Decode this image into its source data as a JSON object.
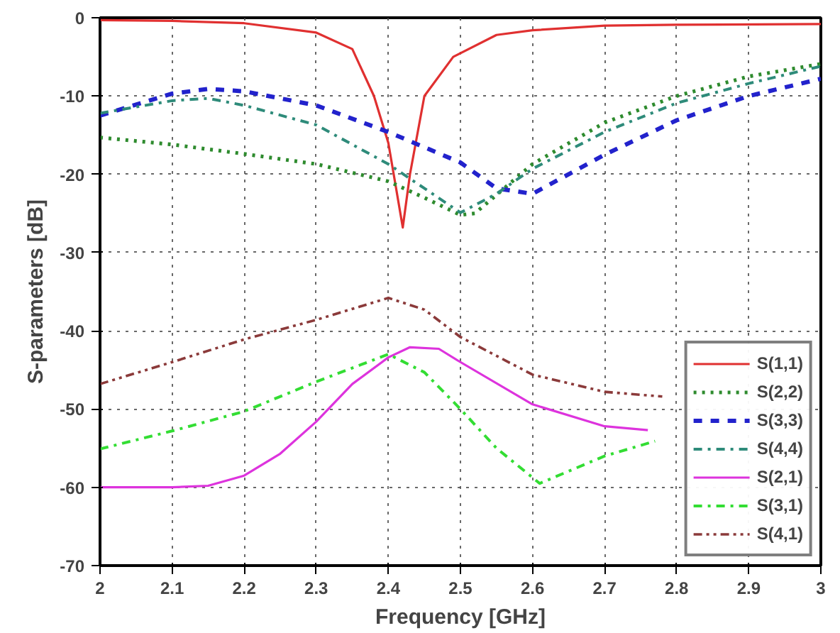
{
  "chart_data": {
    "type": "line",
    "xlabel": "Frequency [GHz]",
    "ylabel": "S-parameters [dB]",
    "xlim": [
      2,
      3
    ],
    "ylim": [
      -70,
      0
    ],
    "xticks": [
      2,
      2.1,
      2.2,
      2.3,
      2.4,
      2.5,
      2.6,
      2.7,
      2.8,
      2.9,
      3
    ],
    "yticks": [
      -70,
      -60,
      -50,
      -40,
      -30,
      -20,
      -10,
      0
    ],
    "grid": true,
    "legend": "bottom right",
    "marker": "none",
    "series": [
      {
        "name": "S(1,1)",
        "color": "#e03030",
        "line_style": "solid",
        "x": [
          2,
          2.1,
          2.2,
          2.3,
          2.35,
          2.38,
          2.4,
          2.42,
          2.43,
          2.45,
          2.49,
          2.55,
          2.6,
          2.7,
          2.8,
          3
        ],
        "values": [
          -0.3,
          -0.4,
          -0.7,
          -1.9,
          -4,
          -10,
          -16,
          -26.8,
          -20,
          -10,
          -5,
          -2.2,
          -1.6,
          -1,
          -0.9,
          -0.8
        ]
      },
      {
        "name": "S(2,2)",
        "color": "#2e8b2e",
        "line_style": "dotted",
        "x": [
          2,
          2.1,
          2.2,
          2.3,
          2.4,
          2.45,
          2.5,
          2.52,
          2.6,
          2.7,
          2.8,
          2.9,
          3
        ],
        "values": [
          -15.3,
          -16.2,
          -17.4,
          -18.7,
          -20.9,
          -23,
          -25.2,
          -25,
          -18.7,
          -13.4,
          -10,
          -7.5,
          -5.9
        ]
      },
      {
        "name": "S(3,3)",
        "color": "#2222cc",
        "line_style": "dashed",
        "x": [
          2,
          2.1,
          2.15,
          2.2,
          2.3,
          2.4,
          2.5,
          2.55,
          2.6,
          2.7,
          2.8,
          2.9,
          3
        ],
        "values": [
          -12.5,
          -9.7,
          -9.1,
          -9.4,
          -11.2,
          -14.6,
          -18.5,
          -21.8,
          -22.5,
          -17.5,
          -13.1,
          -10,
          -7.8
        ]
      },
      {
        "name": "S(4,4)",
        "color": "#2e8b7a",
        "line_style": "dashdot",
        "x": [
          2,
          2.1,
          2.15,
          2.2,
          2.3,
          2.4,
          2.45,
          2.5,
          2.55,
          2.6,
          2.7,
          2.8,
          2.9,
          3
        ],
        "values": [
          -12.2,
          -10.6,
          -10.3,
          -11.2,
          -13.7,
          -18.7,
          -21.8,
          -24.9,
          -22.5,
          -19.3,
          -14.6,
          -10.9,
          -8.4,
          -6.2
        ]
      },
      {
        "name": "S(2,1)",
        "color": "#dd33dd",
        "line_style": "solid",
        "x": [
          2,
          2.1,
          2.15,
          2.2,
          2.25,
          2.3,
          2.35,
          2.4,
          2.43,
          2.47,
          2.5,
          2.6,
          2.7,
          2.76
        ],
        "values": [
          -60,
          -60,
          -59.8,
          -58.5,
          -55.7,
          -51.6,
          -46.8,
          -43.4,
          -42.1,
          -42.3,
          -44,
          -49.4,
          -52.2,
          -52.7
        ]
      },
      {
        "name": "S(3,1)",
        "color": "#33dd33",
        "line_style": "dashdot",
        "x": [
          2,
          2.1,
          2.2,
          2.3,
          2.4,
          2.45,
          2.5,
          2.55,
          2.61,
          2.7,
          2.77
        ],
        "values": [
          -55.1,
          -52.8,
          -50.3,
          -46.5,
          -43,
          -45.3,
          -50,
          -55,
          -59.5,
          -56,
          -54.1
        ]
      },
      {
        "name": "S(4,1)",
        "color": "#8b3a3a",
        "line_style": "dashdotdot",
        "x": [
          2,
          2.1,
          2.2,
          2.3,
          2.4,
          2.45,
          2.5,
          2.6,
          2.7,
          2.78
        ],
        "values": [
          -46.8,
          -44,
          -41.1,
          -38.6,
          -35.8,
          -37.3,
          -40.8,
          -45.6,
          -47.8,
          -48.4
        ]
      }
    ]
  }
}
